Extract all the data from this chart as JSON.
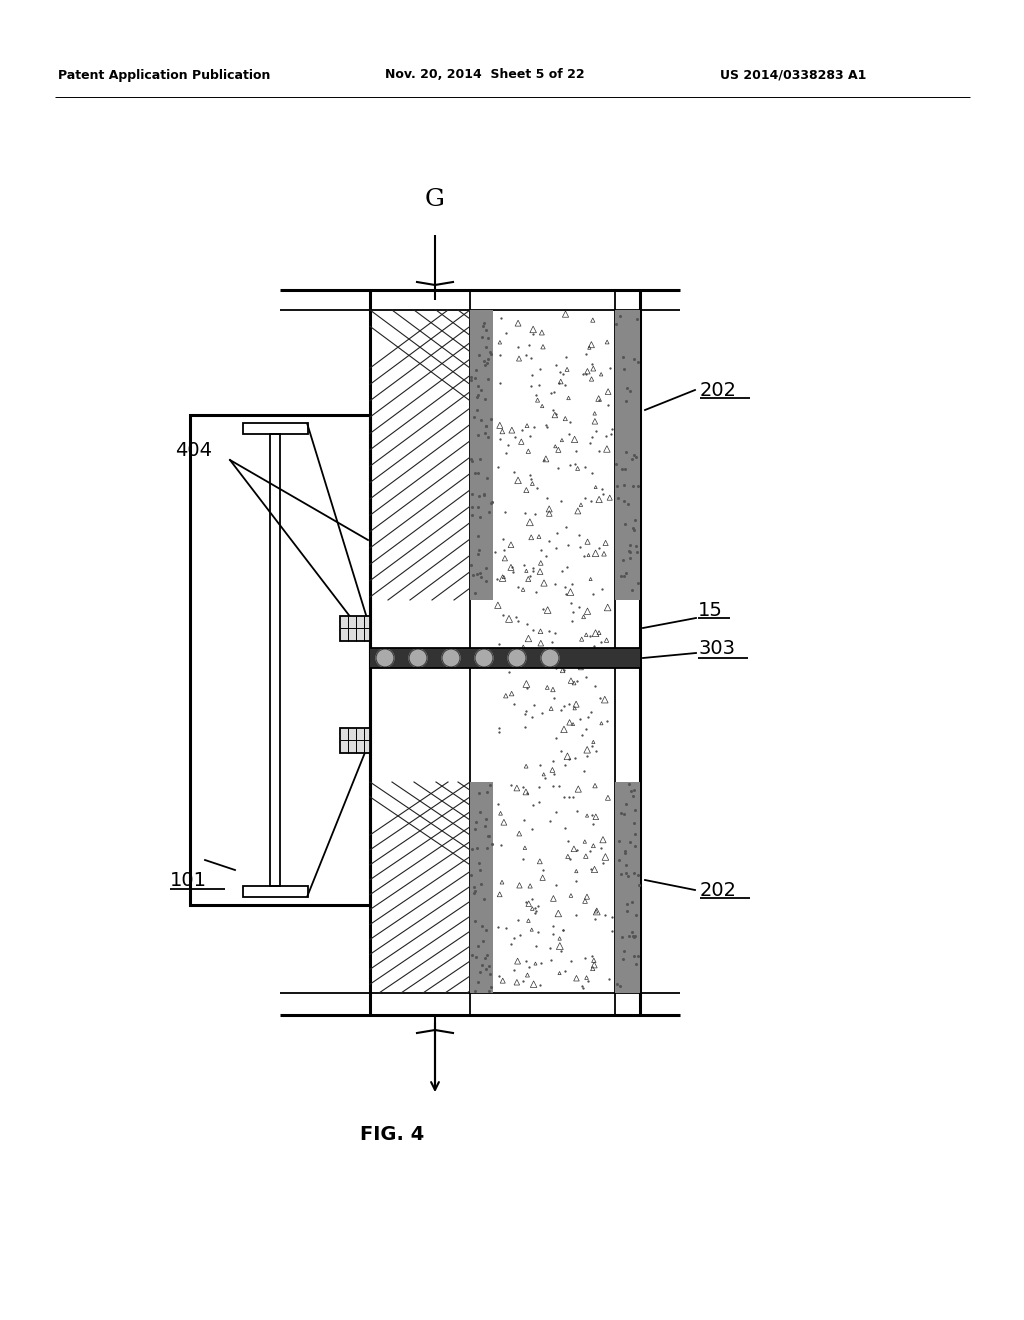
{
  "bg_color": "#ffffff",
  "lc": "#000000",
  "header_left": "Patent Application Publication",
  "header_mid": "Nov. 20, 2014  Sheet 5 of 22",
  "header_right": "US 2014/0338283 A1",
  "fig_label": "FIG. 4",
  "label_G": "G",
  "label_202": "202",
  "label_15": "15",
  "label_303": "303",
  "label_404": "404",
  "label_101": "101",
  "lw": 1.3,
  "tlw": 2.2
}
